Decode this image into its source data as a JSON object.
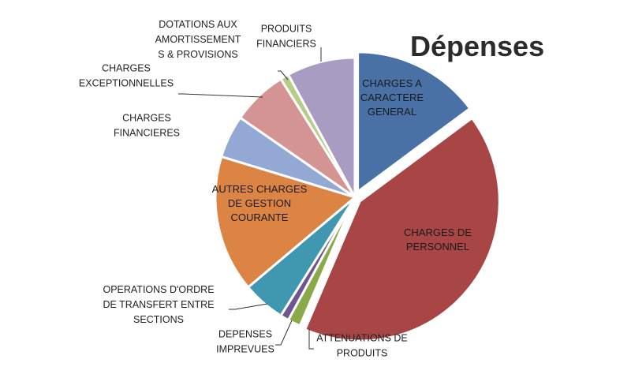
{
  "chart_data": {
    "type": "pie",
    "title": "Dépenses",
    "slices": [
      {
        "label": "CHARGES A CARACTERE GENERAL",
        "value": 15.0,
        "color": "#4a71a6",
        "exploded": true
      },
      {
        "label": "CHARGES DE PERSONNEL",
        "value": 42.0,
        "color": "#a84645",
        "exploded": true
      },
      {
        "label": "ATTENUATIONS DE PRODUITS",
        "value": 1.5,
        "color": "#8aaa4a",
        "exploded": false
      },
      {
        "label": "DEPENSES IMPREVUES",
        "value": 1.0,
        "color": "#6f5591",
        "exploded": false
      },
      {
        "label": "OPERATIONS D'ORDRE DE TRANSFERT ENTRE SECTIONS",
        "value": 5.0,
        "color": "#3f98af",
        "exploded": false
      },
      {
        "label": "AUTRES CHARGES DE GESTION COURANTE",
        "value": 16.0,
        "color": "#dc8444",
        "exploded": false
      },
      {
        "label": "CHARGES FINANCIERES",
        "value": 5.0,
        "color": "#93a9d3",
        "exploded": false
      },
      {
        "label": "CHARGES EXCEPTIONNELLES",
        "value": 6.5,
        "color": "#d49494",
        "exploded": false
      },
      {
        "label": "DOTATIONS AUX AMORTISSEMENTS & PROVISIONS",
        "value": 1.0,
        "color": "#b5cd89",
        "exploded": false
      },
      {
        "label": "PRODUITS FINANCIERS",
        "value": 8.0,
        "color": "#a99cc2",
        "exploded": false
      }
    ]
  },
  "labels": {
    "s0": [
      "CHARGES A",
      "CARACTERE",
      "GENERAL"
    ],
    "s1": [
      "CHARGES DE",
      "PERSONNEL"
    ],
    "s2": [
      "ATTENUATIONS DE",
      "PRODUITS"
    ],
    "s3": [
      "DEPENSES",
      "IMPREVUES"
    ],
    "s4": [
      "OPERATIONS D'ORDRE",
      "DE TRANSFERT ENTRE",
      "SECTIONS"
    ],
    "s5": [
      "AUTRES CHARGES",
      "DE GESTION",
      "COURANTE"
    ],
    "s6": [
      "CHARGES",
      "FINANCIERES"
    ],
    "s7": [
      "CHARGES",
      "EXCEPTIONNELLES"
    ],
    "s8": [
      "DOTATIONS AUX",
      "AMORTISSEMENT",
      "S & PROVISIONS"
    ],
    "s9": [
      "PRODUITS",
      "FINANCIERS"
    ]
  }
}
